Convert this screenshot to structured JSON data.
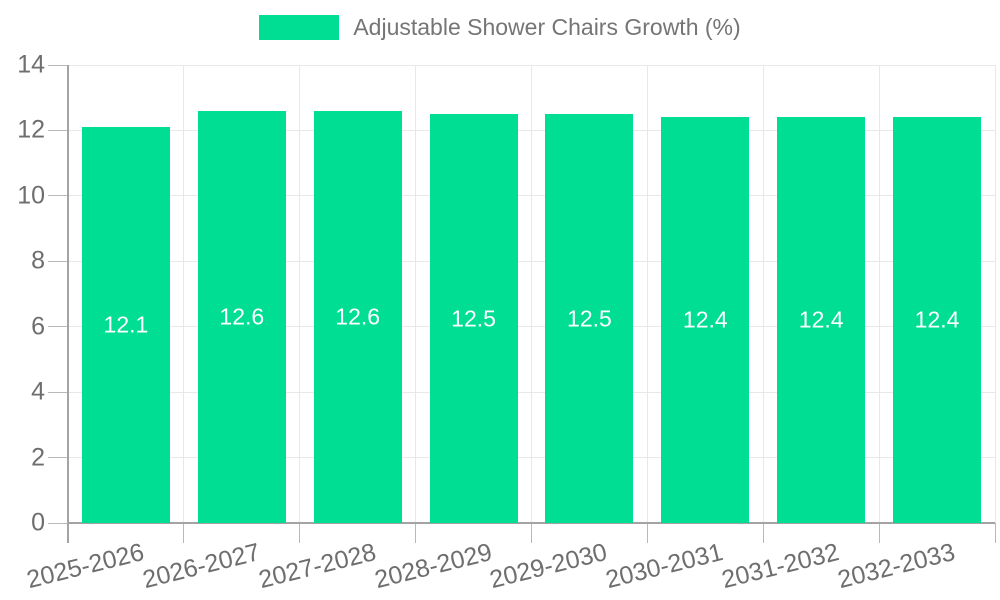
{
  "chart_data": {
    "type": "bar",
    "title": "Adjustable Shower Chairs Growth (%)",
    "legend": "Adjustable Shower Chairs Growth (%)",
    "legend_position": "top",
    "categories": [
      "2025-2026",
      "2026-2027",
      "2027-2028",
      "2028-2029",
      "2029-2030",
      "2030-2031",
      "2031-2032",
      "2032-2033"
    ],
    "values": [
      12.1,
      12.6,
      12.6,
      12.5,
      12.5,
      12.4,
      12.4,
      12.4
    ],
    "bar_labels": [
      "12.1",
      "12.6",
      "12.6",
      "12.5",
      "12.5",
      "12.4",
      "12.4",
      "12.4"
    ],
    "xlabel": "",
    "ylabel": "",
    "ylim": [
      0,
      14
    ],
    "yticks": [
      0,
      2,
      4,
      6,
      8,
      10,
      12,
      14
    ],
    "grid": true,
    "colors": {
      "bar": "#00DE94",
      "bar_label": "#FFFFFF",
      "axis_text": "#6E6E6E",
      "legend_text": "#757575",
      "gridline": "#E8E8E8",
      "axis_line": "#A3A3A3",
      "tick": "#B8B8B8",
      "background": "#FFFFFF"
    }
  }
}
